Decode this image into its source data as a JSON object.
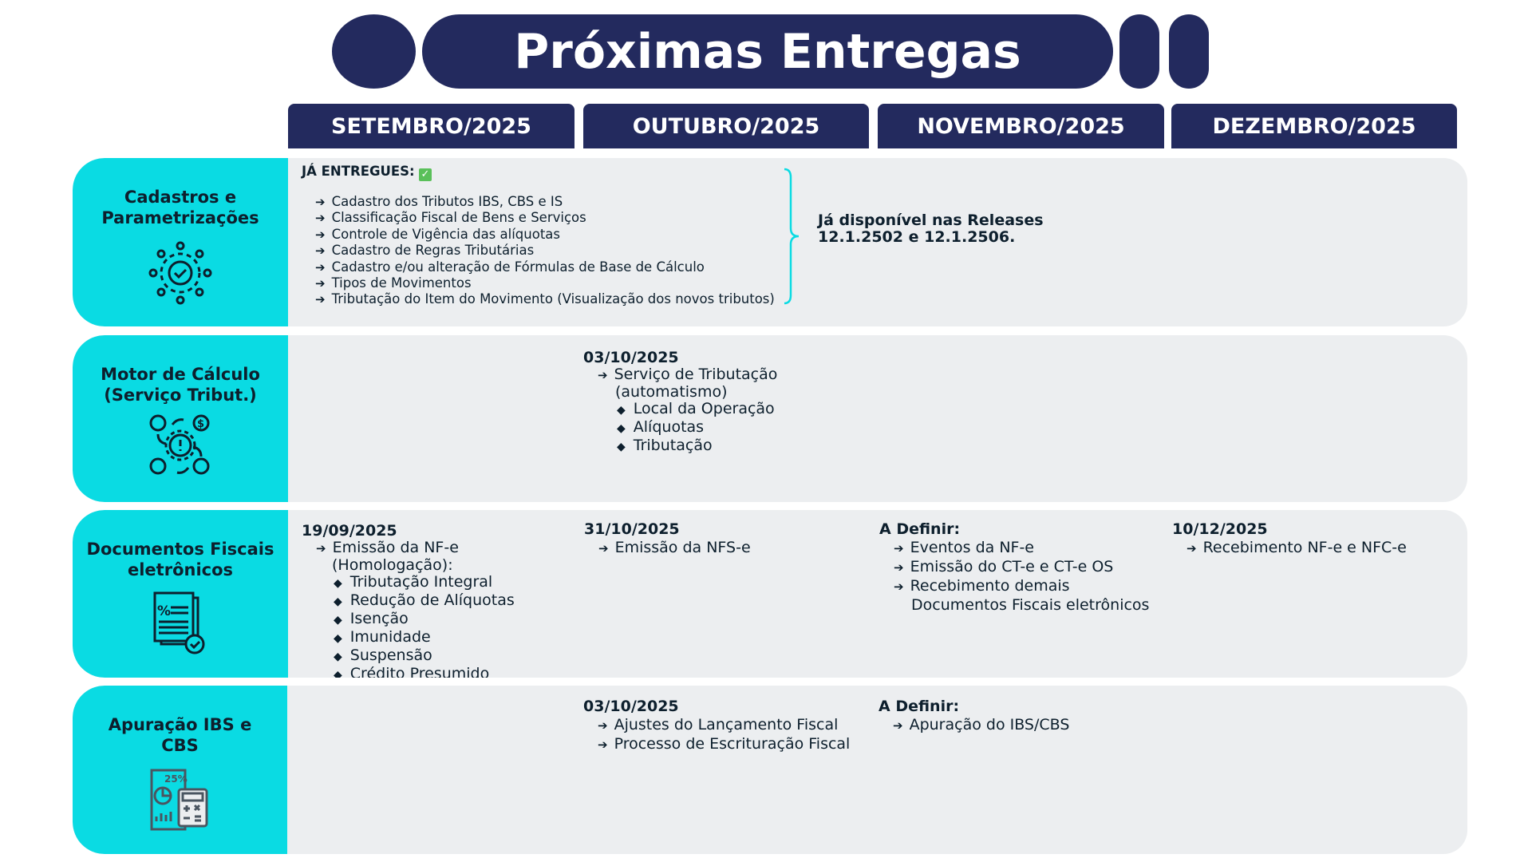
{
  "title": "Próximas Entregas",
  "months": [
    "SETEMBRO/2025",
    "OUTUBRO/2025",
    "NOVEMBRO/2025",
    "DEZEMBRO/2025"
  ],
  "colors": {
    "navy": "#232a5e",
    "cyan": "#0adbe3",
    "panel": "#eceef0"
  },
  "rows": [
    {
      "label": "Cadastros e Parametrizações",
      "icon": "gear-network-icon",
      "heading": "JÁ ENTREGUES:",
      "heading_icon": "check-mark-icon",
      "items": [
        "Cadastro dos Tributos IBS, CBS e IS",
        "Classificação Fiscal de Bens e Serviços",
        "Controle de Vigência das alíquotas",
        "Cadastro de Regras Tributárias",
        "Cadastro e/ou alteração de Fórmulas de Base de Cálculo",
        "Tipos de Movimentos",
        "Tributação do Item do Movimento (Visualização dos novos tributos)"
      ],
      "note_line1": "Já disponível nas Releases",
      "note_line2": "12.1.2502 e 12.1.2506."
    },
    {
      "label": "Motor de Cálculo (Serviço Tribut.)",
      "icon": "process-gear-icon",
      "oct": {
        "date": "03/10/2025",
        "item_line1": "Serviço de Tributação",
        "item_line2": "(automatismo)",
        "subitems": [
          "Local da Operação",
          "Alíquotas",
          "Tributação"
        ]
      }
    },
    {
      "label": "Documentos Fiscais eletrônicos",
      "icon": "tax-document-icon",
      "sep": {
        "date": "19/09/2025",
        "item_line1": "Emissão da NF-e",
        "item_line2": "(Homologação):",
        "subitems": [
          "Tributação Integral",
          "Redução de Alíquotas",
          "Isenção",
          "Imunidade",
          "Suspensão",
          "Crédito Presumido"
        ]
      },
      "oct": {
        "date": "31/10/2025",
        "items": [
          "Emissão da NFS-e"
        ]
      },
      "nov": {
        "date": "A Definir:",
        "items": [
          "Eventos da NF-e",
          "Emissão do CT-e e CT-e OS",
          "Recebimento demais"
        ],
        "item_cont": "Documentos Fiscais eletrônicos"
      },
      "dec": {
        "date": "10/12/2025",
        "items": [
          "Recebimento NF-e e NFC-e"
        ]
      }
    },
    {
      "label": "Apuração IBS e CBS",
      "icon": "tax-calculator-icon",
      "icon_text": "25%",
      "oct": {
        "date": "03/10/2025",
        "items": [
          "Ajustes do Lançamento Fiscal",
          "Processo de Escrituração Fiscal"
        ]
      },
      "nov": {
        "date": "A Definir:",
        "items": [
          "Apuração do IBS/CBS"
        ]
      }
    }
  ]
}
